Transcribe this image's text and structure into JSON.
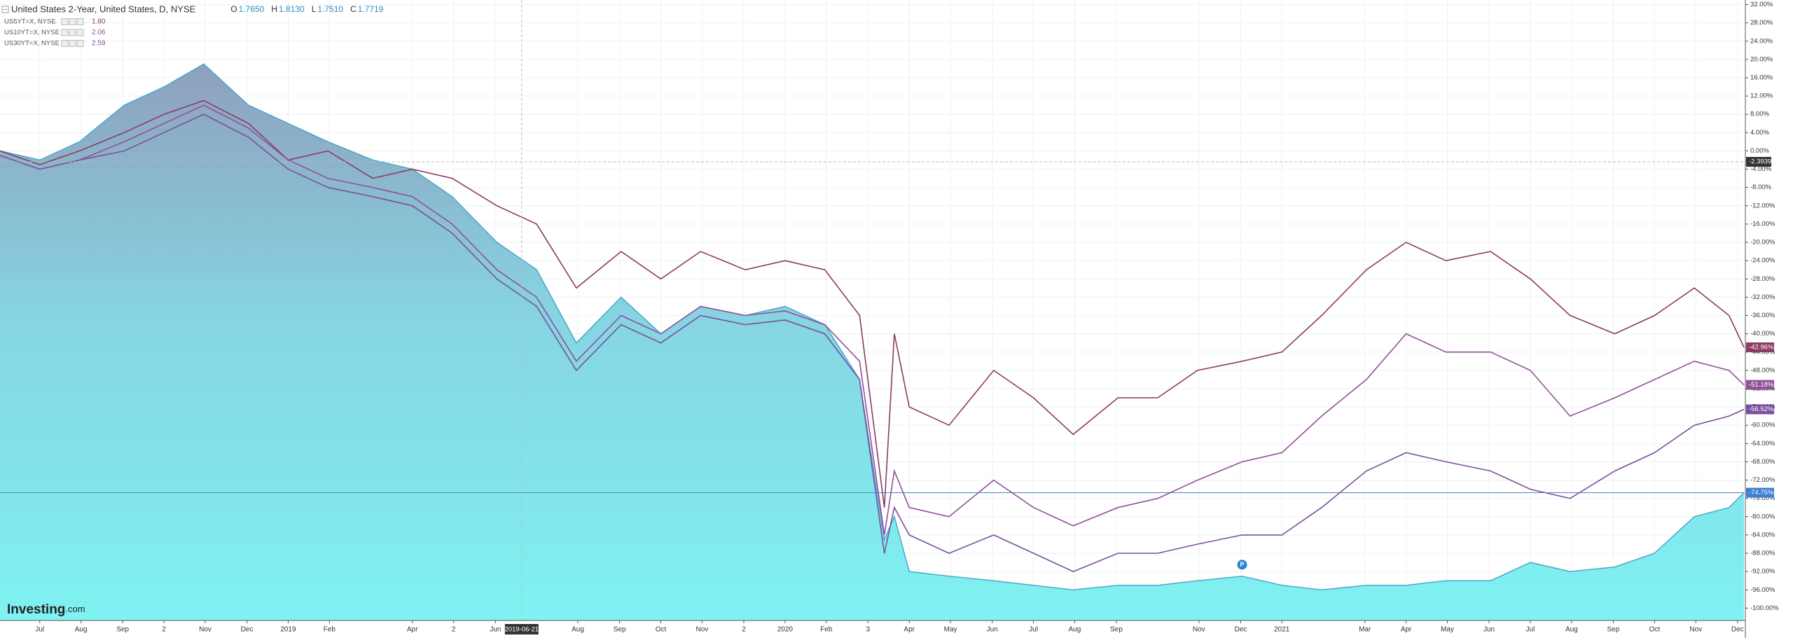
{
  "chart_data": {
    "type": "area",
    "title": "United States 2-Year, United States, D, NYSE",
    "ohlc": [
      {
        "label": "O",
        "value": "1.7650"
      },
      {
        "label": "H",
        "value": "1.8130"
      },
      {
        "label": "L",
        "value": "1.7510"
      },
      {
        "label": "C",
        "value": "1.7719"
      }
    ],
    "watermark": [
      "Investing",
      ".com"
    ],
    "x": [
      2018.42,
      2018.5,
      2018.58,
      2018.67,
      2018.75,
      2018.83,
      2018.92,
      2019.0,
      2019.08,
      2019.17,
      2019.25,
      2019.33,
      2019.42,
      2019.5,
      2019.58,
      2019.67,
      2019.75,
      2019.83,
      2019.92,
      2020.0,
      2020.08,
      2020.15,
      2020.2,
      2020.22,
      2020.25,
      2020.33,
      2020.42,
      2020.5,
      2020.58,
      2020.67,
      2020.75,
      2020.83,
      2020.92,
      2021.0,
      2021.08,
      2021.17,
      2021.25,
      2021.33,
      2021.42,
      2021.5,
      2021.58,
      2021.67,
      2021.75,
      2021.83,
      2021.9,
      2021.93
    ],
    "series": [
      {
        "type": "area",
        "color": "#4aa8cc",
        "last_label": "-74.75%",
        "values": [
          0,
          -2,
          2,
          10,
          14,
          19,
          10,
          6,
          2,
          -2,
          -4,
          -10,
          -20,
          -26,
          -42,
          -32,
          -40,
          -34,
          -36,
          -34,
          -38,
          -50,
          -85,
          -80,
          -92,
          -93,
          -94,
          -95,
          -96,
          -95,
          -95,
          -94,
          -93,
          -95,
          -96,
          -95,
          -95,
          -94,
          -94,
          -90,
          -92,
          -91,
          -88,
          -80,
          -78,
          -74.75
        ]
      },
      {
        "type": "line",
        "name": "US5YT=X, NYSE",
        "legend_value": "1.80",
        "color": "#8b3a62",
        "last_label": "-42.96%",
        "values": [
          0,
          -3,
          0,
          4,
          8,
          11,
          6,
          -2,
          0,
          -6,
          -4,
          -6,
          -12,
          -16,
          -30,
          -22,
          -28,
          -22,
          -26,
          -24,
          -26,
          -36,
          -78,
          -40,
          -56,
          -60,
          -48,
          -54,
          -62,
          -54,
          -54,
          -48,
          -46,
          -44,
          -36,
          -26,
          -20,
          -24,
          -22,
          -28,
          -36,
          -40,
          -36,
          -30,
          -36,
          -42.96
        ]
      },
      {
        "type": "line",
        "name": "US10YT=X, NYSE",
        "legend_value": "2.06",
        "color": "#93509a",
        "last_label": "-51.18%",
        "values": [
          -1,
          -4,
          -2,
          2,
          6,
          10,
          5,
          -2,
          -6,
          -8,
          -10,
          -16,
          -26,
          -32,
          -46,
          -36,
          -40,
          -34,
          -36,
          -35,
          -38,
          -46,
          -84,
          -70,
          -78,
          -80,
          -72,
          -78,
          -82,
          -78,
          -76,
          -72,
          -68,
          -66,
          -58,
          -50,
          -40,
          -44,
          -44,
          -48,
          -58,
          -54,
          -50,
          -46,
          -48,
          -51.18
        ]
      },
      {
        "type": "line",
        "name": "US30YT=X, NYSE",
        "legend_value": "2.59",
        "color": "#7b4f9e",
        "last_label": "-56.52%",
        "values": [
          -1,
          -4,
          -2,
          0,
          4,
          8,
          3,
          -4,
          -8,
          -10,
          -12,
          -18,
          -28,
          -34,
          -48,
          -38,
          -42,
          -36,
          -38,
          -37,
          -40,
          -50,
          -88,
          -78,
          -84,
          -88,
          -84,
          -88,
          -92,
          -88,
          -88,
          -86,
          -84,
          -84,
          -78,
          -70,
          -66,
          -68,
          -70,
          -74,
          -76,
          -70,
          -66,
          -60,
          -58,
          -56.52
        ]
      }
    ],
    "xlim": [
      2018.42,
      2021.93
    ],
    "ylim": [
      -102.7,
      33
    ],
    "grid": true,
    "xticks": [
      {
        "value": 2018.5,
        "label": "Jul"
      },
      {
        "value": 2018.583,
        "label": "Aug"
      },
      {
        "value": 2018.667,
        "label": "Sep"
      },
      {
        "value": 2018.75,
        "label": "2"
      },
      {
        "value": 2018.833,
        "label": "Nov"
      },
      {
        "value": 2018.917,
        "label": "Dec"
      },
      2019,
      {
        "value": 2019.083,
        "label": "Feb"
      },
      {
        "value": 2019.25,
        "label": "Apr"
      },
      {
        "value": 2019.333,
        "label": "2"
      },
      {
        "value": 2019.417,
        "label": "Jun"
      },
      {
        "value": 2019.583,
        "label": "Aug"
      },
      {
        "value": 2019.667,
        "label": "Sep"
      },
      {
        "value": 2019.75,
        "label": "Oct"
      },
      {
        "value": 2019.833,
        "label": "Nov"
      },
      {
        "value": 2019.917,
        "label": "2"
      },
      2020,
      {
        "value": 2020.083,
        "label": "Feb"
      },
      {
        "value": 2020.167,
        "label": "3"
      },
      {
        "value": 2020.25,
        "label": "Apr"
      },
      {
        "value": 2020.333,
        "label": "May"
      },
      {
        "value": 2020.417,
        "label": "Jun"
      },
      {
        "value": 2020.5,
        "label": "Jul"
      },
      {
        "value": 2020.583,
        "label": "Aug"
      },
      {
        "value": 2020.667,
        "label": "Sep"
      },
      {
        "value": 2020.833,
        "label": "Nov"
      },
      {
        "value": 2020.917,
        "label": "Dec"
      },
      2021,
      {
        "value": 2021.167,
        "label": "Mar"
      },
      {
        "value": 2021.25,
        "label": "Apr"
      },
      {
        "value": 2021.333,
        "label": "May"
      },
      {
        "value": 2021.417,
        "label": "Jun"
      },
      {
        "value": 2021.5,
        "label": "Jul"
      },
      {
        "value": 2021.583,
        "label": "Aug"
      },
      {
        "value": 2021.667,
        "label": "Sep"
      },
      {
        "value": 2021.75,
        "label": "Oct"
      },
      {
        "value": 2021.833,
        "label": "Nov"
      },
      {
        "value": 2021.917,
        "label": "Dec"
      }
    ],
    "yticks": [
      {
        "value": 32,
        "label": "32.00%"
      },
      {
        "value": 28,
        "label": "28.00%"
      },
      {
        "value": 24,
        "label": "24.00%"
      },
      {
        "value": 20,
        "label": "20.00%"
      },
      {
        "value": 16,
        "label": "16.00%"
      },
      {
        "value": 12,
        "label": "12.00%"
      },
      {
        "value": 8,
        "label": "8.00%"
      },
      {
        "value": 4,
        "label": "4.00%"
      },
      {
        "value": 0,
        "label": "0.00%"
      },
      {
        "value": -4,
        "label": "-4.00%"
      },
      {
        "value": -8,
        "label": "-8.00%"
      },
      {
        "value": -12,
        "label": "-12.00%"
      },
      {
        "value": -16,
        "label": "-16.00%"
      },
      {
        "value": -20,
        "label": "-20.00%"
      },
      {
        "value": -24,
        "label": "-24.00%"
      },
      {
        "value": -28,
        "label": "-28.00%"
      },
      {
        "value": -32,
        "label": "-32.00%"
      },
      {
        "value": -36,
        "label": "-36.00%"
      },
      {
        "value": -40,
        "label": "-40.00%"
      },
      {
        "value": -44,
        "label": "-44.00%"
      },
      {
        "value": -48,
        "label": "-48.00%"
      },
      {
        "value": -52,
        "label": "-52.00%"
      },
      {
        "value": -56,
        "label": "-56.00%"
      },
      {
        "value": -60,
        "label": "-60.00%"
      },
      {
        "value": -64,
        "label": "-64.00%"
      },
      {
        "value": -68,
        "label": "-68.00%"
      },
      {
        "value": -72,
        "label": "-72.00%"
      },
      {
        "value": -76,
        "label": "-76.00%"
      },
      {
        "value": -80,
        "label": "-80.00%"
      },
      {
        "value": -84,
        "label": "-84.00%"
      },
      {
        "value": -88,
        "label": "-88.00%"
      },
      {
        "value": -92,
        "label": "-92.00%"
      },
      {
        "value": -96,
        "label": "-96.00%"
      },
      {
        "value": -100,
        "label": "-100.00%"
      }
    ],
    "crosshair": {
      "x": 2019.47,
      "x_label": "2019-06-21",
      "y": -2.3939
    },
    "event_marker": {
      "x": 2020.92,
      "y": -90.5,
      "label": "P"
    }
  }
}
